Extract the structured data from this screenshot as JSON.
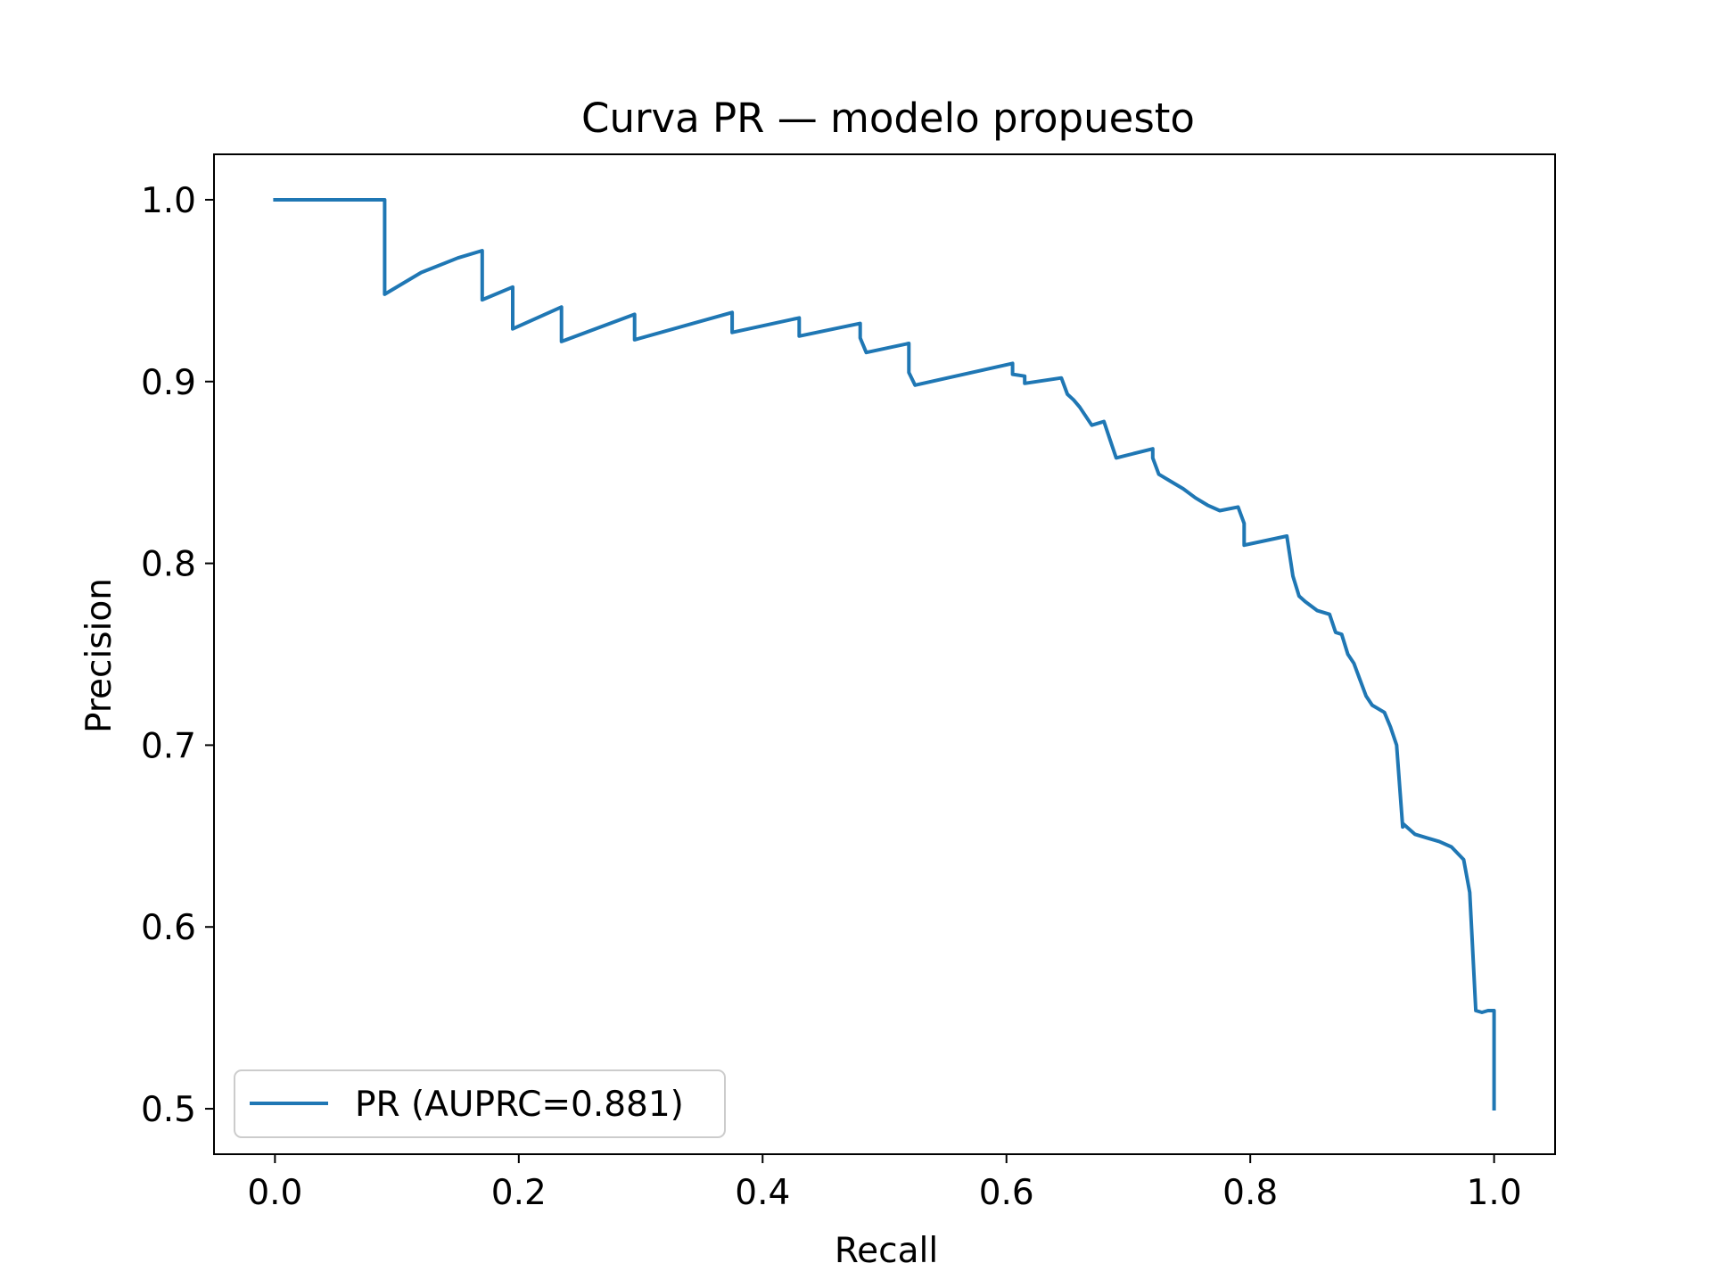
{
  "chart_data": {
    "type": "line",
    "title": "Curva PR — modelo propuesto",
    "xlabel": "Recall",
    "ylabel": "Precision",
    "xlim": [
      -0.05,
      1.05
    ],
    "ylim": [
      0.475,
      1.025
    ],
    "xticks": [
      0.0,
      0.2,
      0.4,
      0.6,
      0.8,
      1.0
    ],
    "xtick_labels": [
      "0.0",
      "0.2",
      "0.4",
      "0.6",
      "0.8",
      "1.0"
    ],
    "yticks": [
      0.5,
      0.6,
      0.7,
      0.8,
      0.9,
      1.0
    ],
    "ytick_labels": [
      "0.5",
      "0.6",
      "0.7",
      "0.8",
      "0.9",
      "1.0"
    ],
    "grid": false,
    "legend_position": "lower-left",
    "series": [
      {
        "name": "PR (AUPRC=0.881)",
        "color": "#1f77b4",
        "x": [
          0.0,
          0.09,
          0.09,
          0.12,
          0.15,
          0.17,
          0.17,
          0.195,
          0.195,
          0.235,
          0.235,
          0.295,
          0.295,
          0.375,
          0.375,
          0.43,
          0.43,
          0.48,
          0.48,
          0.485,
          0.485,
          0.52,
          0.52,
          0.525,
          0.525,
          0.605,
          0.605,
          0.615,
          0.615,
          0.645,
          0.65,
          0.655,
          0.66,
          0.67,
          0.68,
          0.685,
          0.69,
          0.72,
          0.72,
          0.725,
          0.725,
          0.735,
          0.745,
          0.755,
          0.765,
          0.775,
          0.79,
          0.795,
          0.795,
          0.83,
          0.835,
          0.84,
          0.845,
          0.855,
          0.865,
          0.87,
          0.875,
          0.88,
          0.885,
          0.89,
          0.895,
          0.9,
          0.91,
          0.915,
          0.92,
          0.925,
          0.925,
          0.935,
          0.945,
          0.955,
          0.965,
          0.975,
          0.98,
          0.985,
          0.99,
          0.995,
          1.0,
          1.0
        ],
        "y": [
          1.0,
          1.0,
          0.948,
          0.96,
          0.968,
          0.972,
          0.945,
          0.952,
          0.929,
          0.941,
          0.922,
          0.937,
          0.923,
          0.938,
          0.927,
          0.935,
          0.925,
          0.932,
          0.924,
          0.916,
          0.916,
          0.921,
          0.905,
          0.898,
          0.898,
          0.91,
          0.904,
          0.903,
          0.899,
          0.902,
          0.893,
          0.89,
          0.886,
          0.876,
          0.878,
          0.868,
          0.858,
          0.863,
          0.858,
          0.849,
          0.849,
          0.845,
          0.841,
          0.836,
          0.832,
          0.829,
          0.831,
          0.822,
          0.81,
          0.815,
          0.793,
          0.782,
          0.779,
          0.774,
          0.772,
          0.762,
          0.761,
          0.75,
          0.745,
          0.736,
          0.727,
          0.722,
          0.718,
          0.71,
          0.7,
          0.655,
          0.657,
          0.651,
          0.649,
          0.647,
          0.644,
          0.637,
          0.619,
          0.554,
          0.553,
          0.554,
          0.554,
          0.5
        ]
      }
    ]
  }
}
